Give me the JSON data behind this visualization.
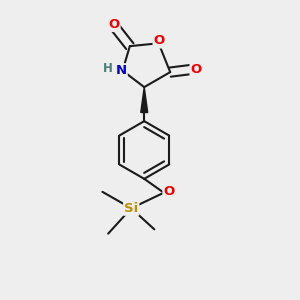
{
  "bg_color": "#eeeeee",
  "bond_color": "#1a1a1a",
  "bond_width": 1.5,
  "O_color": "#ee0000",
  "N_color": "#0000bb",
  "Si_color": "#b89000",
  "H_color": "#4a7a7a",
  "font_size_atom": 9.5,
  "font_size_H": 8.5,
  "font_size_Si": 9.5,
  "xlim": [
    0.15,
    0.85
  ],
  "ylim": [
    -0.02,
    1.02
  ]
}
